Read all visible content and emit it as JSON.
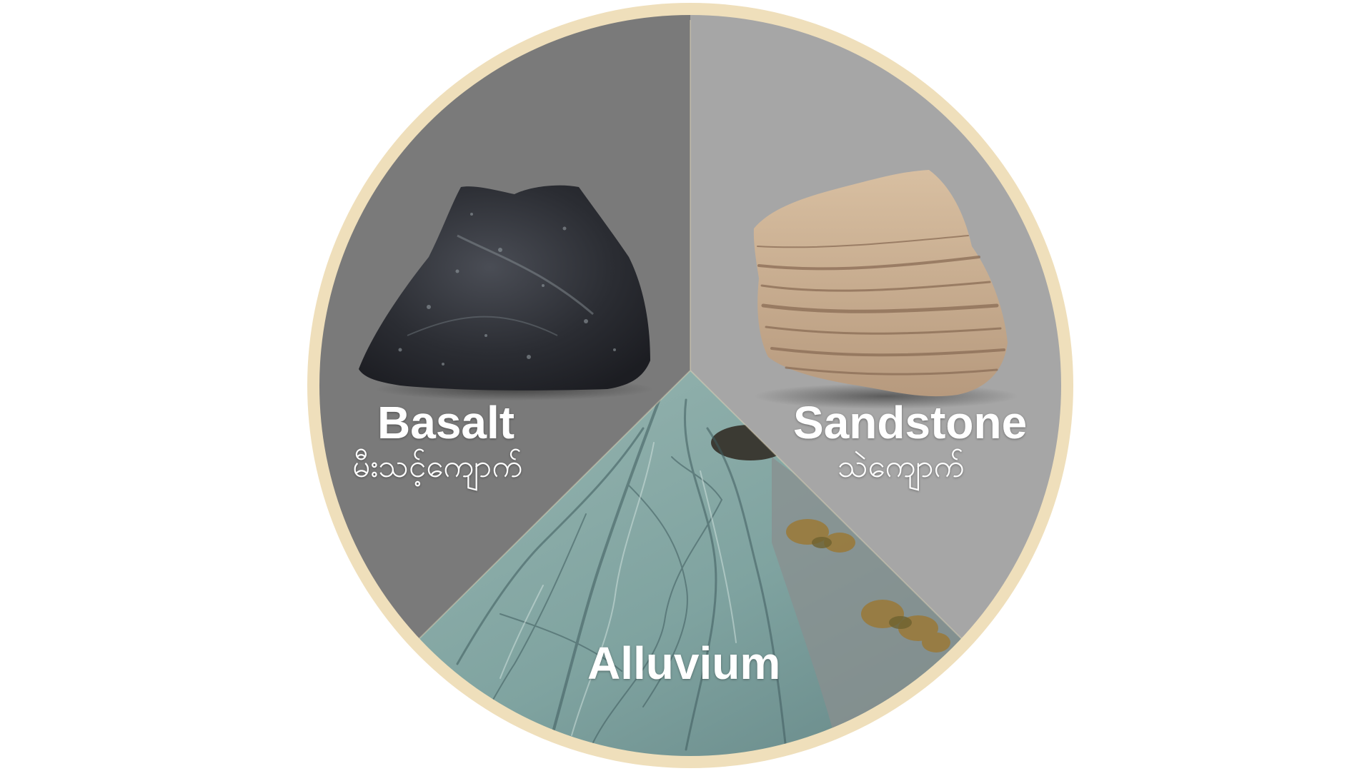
{
  "colors": {
    "page_background": "#ffffff",
    "ring": "#efdfbb",
    "basalt_segment": "#7a7a7a",
    "sandstone_segment": "#a6a6a6",
    "alluvium_water": "#7fa3a0",
    "label_text": "#ffffff"
  },
  "segments": [
    {
      "id": "basalt",
      "label_en": "Basalt",
      "label_my": "မီးသင့်ကျောက်",
      "image": "basalt-rock"
    },
    {
      "id": "sandstone",
      "label_en": "Sandstone",
      "label_my": "သဲကျောက်",
      "image": "sandstone-rock"
    },
    {
      "id": "alluvium",
      "label_en": "Alluvium",
      "label_my": "",
      "image": "braided-river-alluvium"
    }
  ]
}
